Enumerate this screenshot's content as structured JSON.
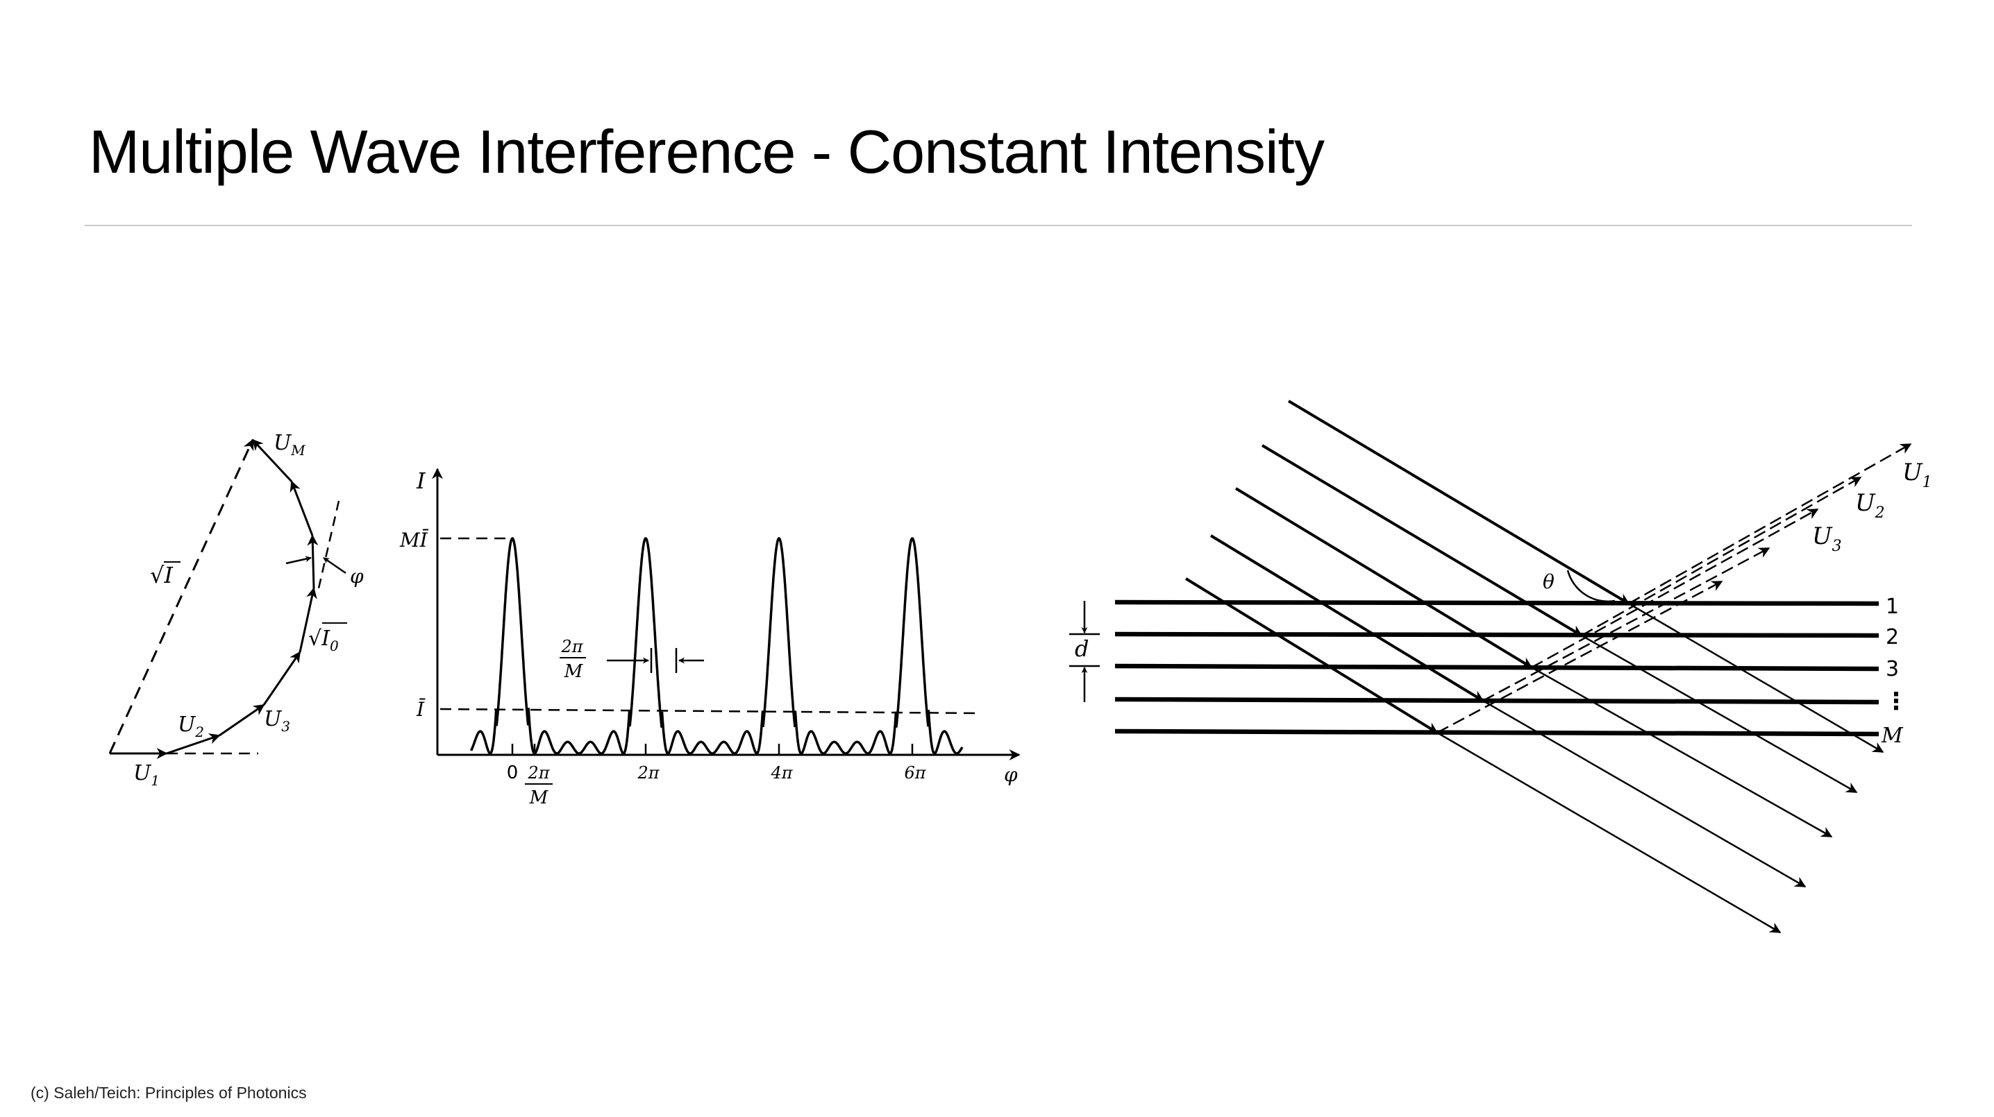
{
  "slide": {
    "title": "Multiple Wave Interference - Constant Intensity",
    "credit": "(c) Saleh/Teich: Principles of Photonics"
  },
  "phasor": {
    "label_UM": "U",
    "sub_UM": "M",
    "label_sqrtI": "√I",
    "label_phi": "φ",
    "label_sqrtI0": "√I",
    "sub_I0": "0",
    "label_U3": "U",
    "sub_U3": "3",
    "label_U2": "U",
    "sub_U2": "2",
    "label_U1": "U",
    "sub_U1": "1"
  },
  "intensity_plot": {
    "y_axis_label": "I",
    "x_axis_label": "φ",
    "level_peak_label": "MĪ",
    "level_mean_label": "Ī",
    "width_num": "2π",
    "width_den": "M",
    "tick_0": "0",
    "tick_2pi_over_M_num": "2π",
    "tick_2pi_over_M_den": "M",
    "tick_2pi": "2π",
    "tick_4pi": "4π",
    "tick_6pi": "6π",
    "peak_positions_in_pi": [
      0,
      2,
      4,
      6
    ],
    "M_shown": 6
  },
  "layers": {
    "spacing_label": "d",
    "theta_label": "θ",
    "layer_labels": [
      "1",
      "2",
      "3",
      "⋮",
      "M"
    ],
    "wave_U1": "U",
    "wave_U1_sub": "1",
    "wave_U2": "U",
    "wave_U2_sub": "2",
    "wave_U3": "U",
    "wave_U3_sub": "3"
  }
}
